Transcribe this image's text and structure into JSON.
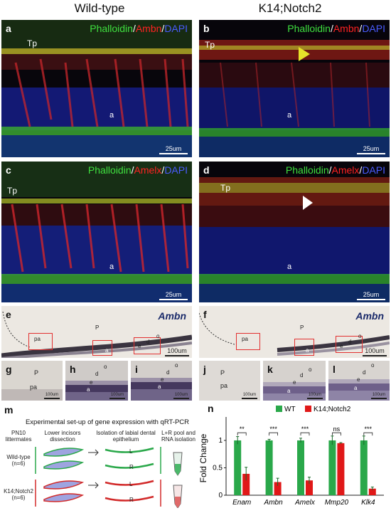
{
  "columns": {
    "left": "Wild-type",
    "right": "K14;Notch2"
  },
  "panels": {
    "a": {
      "label": "a",
      "stain": [
        "Phalloidin",
        "Ambn",
        "DAPI"
      ],
      "tp": "Tp",
      "layer": "a",
      "scale": "25um"
    },
    "b": {
      "label": "b",
      "stain": [
        "Phalloidin",
        "Ambn",
        "DAPI"
      ],
      "tp": "Tp",
      "layer": "a",
      "scale": "25um"
    },
    "c": {
      "label": "c",
      "stain": [
        "Phalloidin",
        "Amelx",
        "DAPI"
      ],
      "tp": "Tp",
      "layer": "a",
      "scale": "25um"
    },
    "d": {
      "label": "d",
      "stain": [
        "Phalloidin",
        "Amelx",
        "DAPI"
      ],
      "tp": "Tp",
      "layer": "a",
      "scale": "25um"
    },
    "e": {
      "label": "e",
      "gene": "Ambn",
      "scale": "100um",
      "marks": [
        "pa",
        "P",
        "a",
        "e",
        "d",
        "o"
      ]
    },
    "f": {
      "label": "f",
      "gene": "Ambn",
      "scale": "100um",
      "marks": [
        "pa",
        "P",
        "a",
        "e",
        "d",
        "o"
      ]
    },
    "g": {
      "label": "g",
      "scale": "100um",
      "marks": [
        "P",
        "pa"
      ]
    },
    "h": {
      "label": "h",
      "scale": "100um",
      "marks": [
        "o",
        "d",
        "e",
        "a"
      ]
    },
    "i": {
      "label": "i",
      "scale": "100um",
      "marks": [
        "o",
        "d",
        "e",
        "a"
      ]
    },
    "j": {
      "label": "j",
      "scale": "100um",
      "marks": [
        "P",
        "pa"
      ]
    },
    "k": {
      "label": "k",
      "scale": "100um",
      "marks": [
        "o",
        "d",
        "e",
        "a"
      ]
    },
    "l": {
      "label": "l",
      "scale": "100um",
      "marks": [
        "o",
        "d",
        "e",
        "a"
      ]
    }
  },
  "panel_m": {
    "label": "m",
    "title": "Experimental set-up of gene expression with qRT-PCR",
    "steps": [
      "PN10 littermates",
      "Lower incisors dissection",
      "Isolation of labial dental epithelium",
      "L+R pool and RNA isolation"
    ],
    "groups": [
      {
        "name": "Wild-type",
        "n": "(n=6)",
        "color": "#2aa84a"
      },
      {
        "name": "K14;Notch2",
        "n": "(n=6)",
        "color": "#d22a2a"
      }
    ],
    "sides": [
      "L",
      "R"
    ]
  },
  "chart_data": {
    "type": "bar",
    "label": "n",
    "categories": [
      "Enam",
      "Ambn",
      "Amelx",
      "Mmp20",
      "Klk4"
    ],
    "series": [
      {
        "name": "WT",
        "color": "#2aa84a",
        "values": [
          1.0,
          1.0,
          1.0,
          1.0,
          1.0
        ],
        "errors": [
          0.07,
          0.02,
          0.04,
          0.08,
          0.08
        ]
      },
      {
        "name": "K14;Notch2",
        "color": "#e01818",
        "values": [
          0.39,
          0.24,
          0.27,
          0.95,
          0.12
        ],
        "errors": [
          0.12,
          0.07,
          0.06,
          0.01,
          0.03
        ]
      }
    ],
    "significance": [
      "**",
      "***",
      "***",
      "ns",
      "***"
    ],
    "ylabel": "Fold Change",
    "ylim": [
      0,
      1.35
    ],
    "yticks": [
      "0",
      "0.5",
      "1"
    ],
    "legend": "top"
  }
}
